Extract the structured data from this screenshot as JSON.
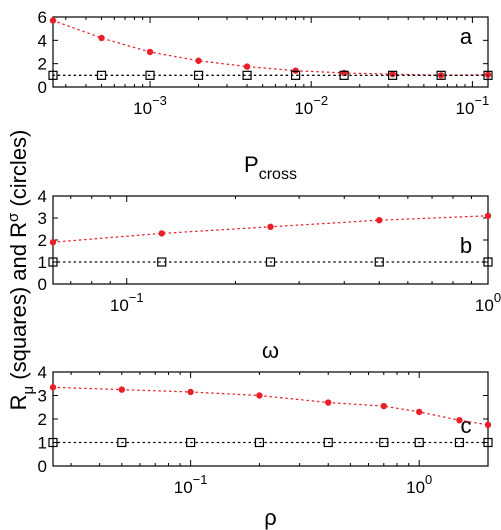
{
  "ylabel": {
    "r": "R",
    "mu": "μ",
    "mid": " (squares) and R",
    "sigma": "σ",
    "end": " (circles)"
  },
  "chart_data": [
    {
      "type": "scatter",
      "panel": "a",
      "xlabel_main": "P",
      "xlabel_sub": "cross",
      "xscale": "log",
      "xlim": [
        0.00025,
        0.125
      ],
      "ylim": [
        0,
        6
      ],
      "yticks": [
        0,
        2,
        4,
        6
      ],
      "xticks": [
        0.001,
        0.01,
        0.1
      ],
      "xtick_labels": [
        [
          "10",
          "−3"
        ],
        [
          "10",
          "−2"
        ],
        [
          "10",
          "−1"
        ]
      ],
      "series": [
        {
          "marker": "circle",
          "color": "#e8202a",
          "x": [
            0.00025,
            0.0005,
            0.001,
            0.002,
            0.004,
            0.008,
            0.016,
            0.032,
            0.064,
            0.125
          ],
          "y": [
            5.7,
            4.2,
            3.0,
            2.25,
            1.75,
            1.4,
            1.2,
            1.1,
            1.0,
            1.05
          ]
        },
        {
          "marker": "square",
          "color": "#000000",
          "x": [
            0.00025,
            0.0005,
            0.001,
            0.002,
            0.004,
            0.008,
            0.016,
            0.032,
            0.064,
            0.125
          ],
          "y": [
            1,
            1,
            1,
            1,
            1,
            1,
            1,
            1,
            1,
            1
          ]
        }
      ]
    },
    {
      "type": "scatter",
      "panel": "b",
      "xlabel_main": "ω",
      "xlabel_sub": "",
      "xscale": "log",
      "xlim": [
        0.0625,
        1.0
      ],
      "ylim": [
        0,
        4
      ],
      "yticks": [
        0,
        1,
        2,
        3,
        4
      ],
      "xticks": [
        0.1,
        1.0
      ],
      "xtick_labels": [
        [
          "10",
          "−1"
        ],
        [
          "10",
          "0"
        ]
      ],
      "series": [
        {
          "marker": "circle",
          "color": "#e8202a",
          "x": [
            0.0625,
            0.125,
            0.25,
            0.5,
            1.0
          ],
          "y": [
            1.9,
            2.3,
            2.6,
            2.9,
            3.1
          ]
        },
        {
          "marker": "square",
          "color": "#000000",
          "x": [
            0.0625,
            0.125,
            0.25,
            0.5,
            1.0
          ],
          "y": [
            1,
            1,
            1,
            1,
            1
          ]
        }
      ]
    },
    {
      "type": "scatter",
      "panel": "c",
      "xlabel_main": "ρ",
      "xlabel_sub": "",
      "xscale": "log",
      "xlim": [
        0.025,
        2.0
      ],
      "ylim": [
        0,
        4
      ],
      "yticks": [
        0,
        1,
        2,
        3,
        4
      ],
      "xticks": [
        0.1,
        1.0
      ],
      "xtick_labels": [
        [
          "10",
          "−1"
        ],
        [
          "10",
          "0"
        ]
      ],
      "series": [
        {
          "marker": "circle",
          "color": "#e8202a",
          "x": [
            0.025,
            0.05,
            0.1,
            0.2,
            0.4,
            0.7,
            1.0,
            1.5,
            2.0
          ],
          "y": [
            3.35,
            3.25,
            3.15,
            3.0,
            2.7,
            2.55,
            2.3,
            1.95,
            1.75
          ]
        },
        {
          "marker": "square",
          "color": "#000000",
          "x": [
            0.025,
            0.05,
            0.1,
            0.2,
            0.4,
            0.7,
            1.0,
            1.5,
            2.0
          ],
          "y": [
            1,
            1,
            1,
            1,
            1,
            1,
            1,
            1,
            1
          ]
        }
      ]
    }
  ]
}
